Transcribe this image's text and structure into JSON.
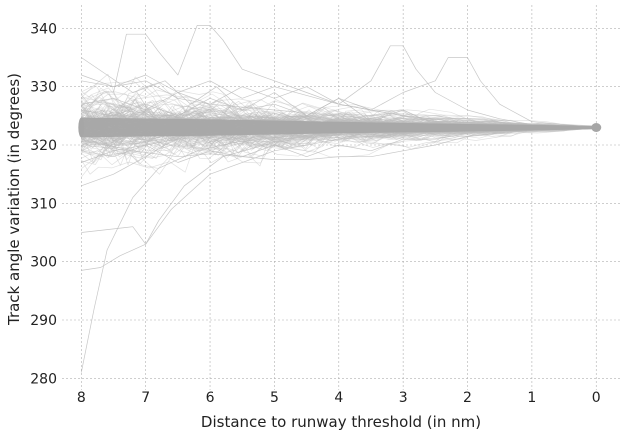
{
  "chart_data": {
    "type": "line",
    "title": "",
    "xlabel": "Distance to runway threshold (in nm)",
    "ylabel": "Track angle variation (in degrees)",
    "xlim": [
      8.3,
      -0.4
    ],
    "ylim": [
      278,
      344
    ],
    "x_reversed": true,
    "x_ticks": [
      8,
      7,
      6,
      5,
      4,
      3,
      2,
      1,
      0
    ],
    "y_ticks": [
      280,
      290,
      300,
      310,
      320,
      330,
      340
    ],
    "grid": true,
    "legend": "none",
    "colors": {
      "traces": "#bdbdbd",
      "core_band": "#a6a6a6",
      "grid": "#b0b0b0",
      "text": "#222222"
    },
    "series_count_estimate": 200,
    "converged_value": 323,
    "core_band": {
      "x": [
        8,
        6,
        4,
        2,
        0
      ],
      "y_low": [
        321.3,
        321.6,
        322.0,
        322.3,
        322.7
      ],
      "y_high": [
        324.7,
        324.4,
        324.0,
        323.6,
        323.3
      ]
    },
    "series": [
      {
        "x": [
          8,
          7.8,
          7.6,
          7.2,
          6.8,
          6.2,
          5.6,
          4.8,
          4,
          3,
          2,
          1,
          0
        ],
        "y": [
          281,
          292,
          302,
          311,
          316,
          319,
          320.5,
          321.5,
          322,
          322.5,
          322.8,
          323,
          323
        ]
      },
      {
        "x": [
          8,
          7.7,
          7.4,
          7,
          6.6,
          6,
          5,
          4,
          3,
          2,
          1,
          0
        ],
        "y": [
          298.5,
          299,
          301,
          303,
          309,
          315,
          319,
          321,
          322,
          322.6,
          322.9,
          323
        ]
      },
      {
        "x": [
          8,
          7.6,
          7.2,
          7,
          6.8,
          6.4,
          5.8,
          5,
          4,
          3,
          2,
          1,
          0
        ],
        "y": [
          305,
          305.5,
          306,
          303,
          307,
          313,
          318,
          320.5,
          321.8,
          322.5,
          322.9,
          323,
          323
        ]
      },
      {
        "x": [
          8,
          7.5,
          7,
          6.7,
          6.4,
          6,
          5.2,
          4.4,
          3.5,
          2.5,
          1.5,
          0
        ],
        "y": [
          313,
          315,
          318,
          320,
          321.5,
          322.5,
          323,
          323,
          323,
          323,
          323,
          323
        ]
      },
      {
        "x": [
          8,
          7.5,
          7,
          6.5,
          6,
          5,
          4,
          3,
          2,
          1,
          0
        ],
        "y": [
          317,
          319,
          320,
          321,
          321.8,
          322.3,
          322.7,
          322.9,
          323,
          323,
          323
        ]
      },
      {
        "x": [
          8,
          7.6,
          7.2,
          6.7,
          6.3,
          5.9,
          5.5,
          5,
          4.5,
          4,
          3.5,
          3,
          2.5,
          2,
          1.5,
          1,
          0
        ],
        "y": [
          335,
          332,
          329,
          331,
          327,
          330,
          326,
          329,
          325,
          328,
          324,
          326,
          323.5,
          324,
          323.2,
          323,
          323
        ]
      },
      {
        "x": [
          7.5,
          7.3,
          7,
          6.8,
          6.5,
          6.2,
          6,
          5.8,
          5.5,
          5,
          4.5,
          4,
          3.5,
          3,
          2.5,
          2,
          1,
          0
        ],
        "y": [
          329,
          339,
          339,
          336,
          332,
          340.5,
          340.5,
          338,
          333,
          331,
          329,
          327,
          326,
          325,
          324,
          323.5,
          323.1,
          323
        ]
      },
      {
        "x": [
          8,
          7.5,
          7,
          6.5,
          6,
          5.5,
          5,
          4.5,
          4,
          3.5,
          3.2,
          3,
          2.8,
          2.5,
          2,
          1.5,
          1,
          0
        ],
        "y": [
          327,
          328,
          326,
          329,
          327,
          330,
          328,
          330,
          327,
          331,
          337,
          337,
          333,
          329,
          326,
          324.5,
          323.5,
          323
        ]
      },
      {
        "x": [
          8,
          7.5,
          7,
          6.5,
          6,
          5.5,
          5,
          4.5,
          4,
          3.5,
          3,
          2.5,
          2.3,
          2,
          1.8,
          1.5,
          1,
          0
        ],
        "y": [
          326,
          325,
          327,
          325,
          328,
          326,
          327,
          325,
          328,
          326,
          329,
          331,
          335,
          335,
          331,
          327,
          324,
          323
        ]
      },
      {
        "x": [
          8,
          7.5,
          7,
          6.5,
          6,
          5.5,
          5,
          4.5,
          4,
          3.5,
          3,
          2.5,
          2,
          1.5,
          1,
          0
        ],
        "y": [
          319,
          318,
          320,
          317,
          319,
          318,
          320,
          318,
          320,
          319,
          321,
          321,
          322,
          322.5,
          323,
          323
        ]
      },
      {
        "x": [
          8,
          7.2,
          6.5,
          6,
          5.5,
          5,
          4.5,
          4,
          3.5,
          3,
          2.5,
          2,
          1,
          0
        ],
        "y": [
          321,
          319,
          318,
          318.5,
          318,
          317.5,
          317.5,
          318,
          318,
          319,
          320,
          321.5,
          322.6,
          323
        ]
      },
      {
        "x": [
          8,
          7.5,
          7,
          6.5,
          6,
          5.5,
          5,
          4,
          3,
          2,
          1,
          0
        ],
        "y": [
          331,
          330,
          332,
          329,
          331,
          328,
          330,
          327,
          325,
          323.8,
          323.2,
          323
        ]
      },
      {
        "x": [
          8,
          7.5,
          7,
          6.5,
          6,
          5,
          4,
          3,
          2,
          1,
          0
        ],
        "y": [
          332,
          330,
          331,
          328,
          327,
          326,
          325,
          324,
          323.5,
          323.1,
          323
        ]
      }
    ]
  }
}
